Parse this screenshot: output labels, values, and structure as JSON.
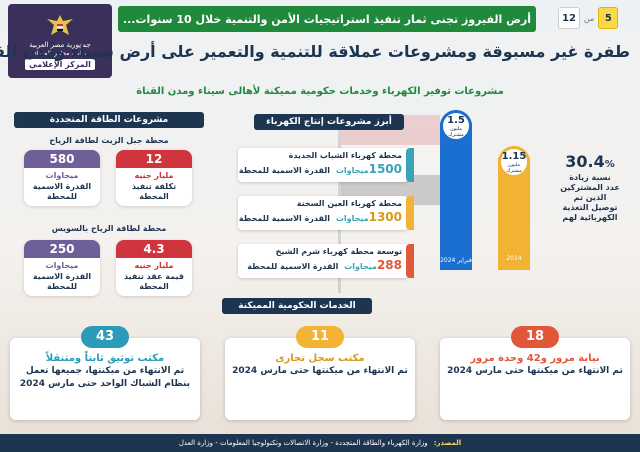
{
  "page": {
    "current": "5",
    "of": "من",
    "total": "12"
  },
  "banner": "أرض الفيروز تجنى ثمار تنفيذ استراتيجيات الأمن والتنمية خلال 10 سنوات...",
  "logo": {
    "line1": "جمهورية مصر العربية",
    "line2": "رئاسة مجلس الوزراء",
    "line3": "المركز الإعلامي"
  },
  "title": "طفرة غير مسبوقة ومشروعات عملاقة للتنمية والتعمير على أرض سيناء ومدن القناة",
  "subtitle": "مشروعات توفير الكهرباء وخدمات حكومية مميكنة لأهالى سيناء ومدن القناة",
  "renewable": {
    "header": "مشروعات الطاقة المتجددة",
    "wind_gabal": {
      "title": "محطة جبل الزيت لطاقة الرياح",
      "cost": {
        "value": "12",
        "unit": "مليار جنيه",
        "desc": "تكلفة تنفيذ المحطة"
      },
      "capacity": {
        "value": "580",
        "unit": "ميجاوات",
        "desc": "القدرة الاسمية للمحطة"
      }
    },
    "wind_suez": {
      "title": "محطة لطاقة الرياح بالسويس",
      "cost": {
        "value": "4.3",
        "unit": "مليار جنيه",
        "desc": "قيمة عقد تنفيذ المحطة"
      },
      "capacity": {
        "value": "250",
        "unit": "ميجاوات",
        "desc": "القدرة الاسمية للمحطة"
      }
    }
  },
  "power": {
    "header": "أبرز مشروعات إنتاج الكهرباء",
    "plants": [
      {
        "name": "محطة كهرباء الشباب الجديدة",
        "value": "1500",
        "unit": "ميجاوات",
        "label": "القدرة الاسمية للمحطة"
      },
      {
        "name": "محطة كهرباء العين السخنة",
        "value": "1300",
        "unit": "ميجاوات",
        "label": "القدرة الاسمية للمحطة"
      },
      {
        "name": "توسعة محطة كهرباء شرم الشيخ",
        "value": "288",
        "unit": "ميجاوات",
        "label": "القدرة الاسمية للمحطة"
      }
    ]
  },
  "subscribers": {
    "percent": "30.4",
    "percent_sign": "%",
    "desc_lines": [
      "نسبة زيادة",
      "عدد المشتركين",
      "الذين تم",
      "توصيل التغذية",
      "الكهربائية لهم"
    ],
    "bars": [
      {
        "year": "فبراير 2024",
        "value": "1.5",
        "unit": "مليون مشترك",
        "color": "#1b6fd1"
      },
      {
        "year": "2014",
        "value": "1.15",
        "unit": "مليون مشترك",
        "color": "#f2b233"
      }
    ]
  },
  "gov": {
    "header": "الخدمات الحكومية المميكنة",
    "cards": [
      {
        "num": "43",
        "title": "مكتب توثيق ثابتاً ومتنقلاً",
        "desc": "تم الانتهاء من ميكنتها، جميعها تعمل بنظام الشباك الواحد حتى مارس 2024",
        "color": "#2b9bb8"
      },
      {
        "num": "11",
        "title": "مكتب سجل تجارى",
        "desc": "تم الانتهاء من ميكنتها حتى مارس 2024",
        "color": "#f2b233"
      },
      {
        "num": "18",
        "title": "نيابة مرور و42 وحدة مرور",
        "desc": "تم الانتهاء من ميكنتها حتى مارس 2024",
        "color": "#e0573a"
      }
    ]
  },
  "source": {
    "label": "المصدر:",
    "text": "وزارة الكهرباء والطاقة المتجددة - وزارة الاتصالات وتكنولوجيا المعلومات - وزارة العدل"
  }
}
